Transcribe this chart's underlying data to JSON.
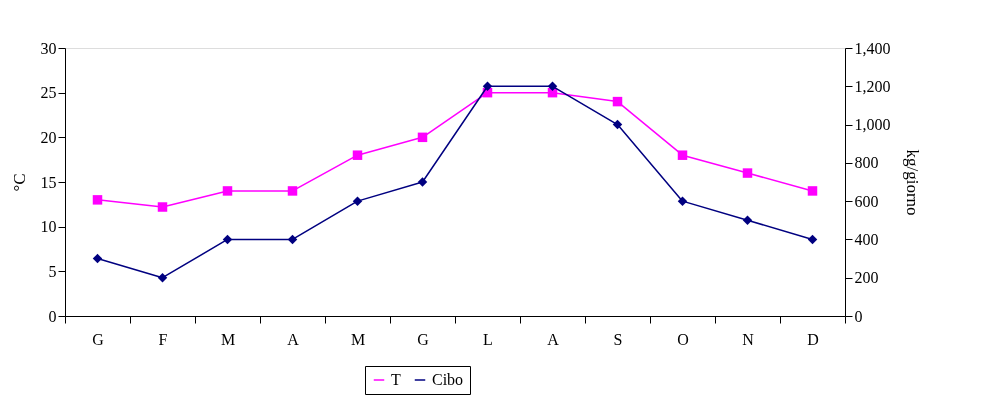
{
  "chart_data": {
    "type": "line",
    "categories": [
      "G",
      "F",
      "M",
      "A",
      "M",
      "G",
      "L",
      "A",
      "S",
      "O",
      "N",
      "D"
    ],
    "series": [
      {
        "name": "T",
        "color": "#ff00ff",
        "marker": "square",
        "values": [
          13,
          12.2,
          14,
          14,
          18,
          20,
          25,
          25,
          24,
          18,
          16,
          14
        ]
      },
      {
        "name": "Cibo",
        "color": "#000080",
        "marker": "diamond",
        "axis": "y2",
        "values": [
          300,
          200,
          400,
          400,
          600,
          700,
          1200,
          1200,
          1000,
          600,
          500,
          400
        ]
      }
    ],
    "ylabel": "°C",
    "y2label": "kg/giorno",
    "ylim": [
      0,
      30
    ],
    "yticks": [
      0,
      5,
      10,
      15,
      20,
      25,
      30
    ],
    "y2lim": [
      0,
      1400
    ],
    "y2ticks": [
      {
        "value": 0,
        "label": "0"
      },
      {
        "value": 200,
        "label": "200"
      },
      {
        "value": 400,
        "label": "400"
      },
      {
        "value": 600,
        "label": "600"
      },
      {
        "value": 800,
        "label": "800"
      },
      {
        "value": 1000,
        "label": "1,000"
      },
      {
        "value": 1200,
        "label": "1,200"
      },
      {
        "value": 1400,
        "label": "1,400"
      }
    ],
    "grid": false,
    "legend": "bottom",
    "line_style": "solid"
  }
}
